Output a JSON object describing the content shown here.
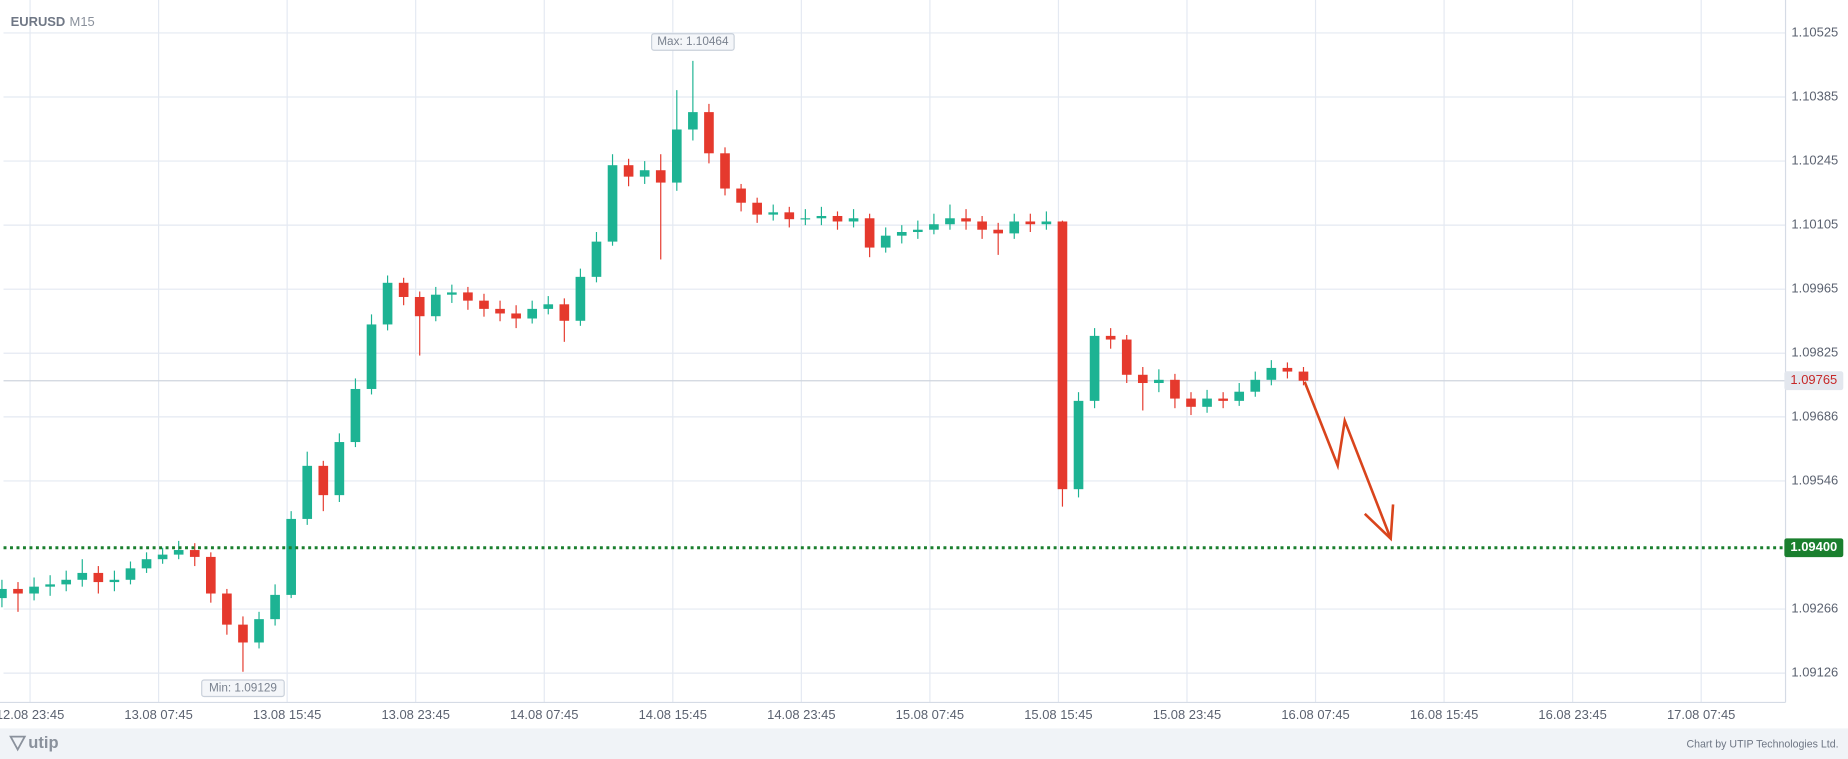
{
  "chart_data": {
    "type": "candlestick",
    "title": "EURUSD",
    "subtitle": "M15",
    "x": [
      22,
      23,
      24,
      25,
      26,
      27,
      28,
      29,
      30,
      31,
      32,
      33,
      34,
      35,
      36,
      37,
      38,
      39,
      40,
      41,
      42,
      43,
      44,
      45,
      46,
      47,
      48,
      49,
      50,
      51,
      52,
      53,
      54,
      55,
      56,
      57,
      58,
      59,
      60,
      61,
      62,
      63,
      64,
      65,
      66,
      67,
      68,
      69,
      70,
      71,
      72,
      73,
      74,
      75,
      76,
      77,
      78,
      79,
      80,
      81,
      82,
      83,
      84,
      85,
      86,
      87,
      88,
      89,
      90,
      91,
      92,
      93,
      94,
      95,
      96,
      97,
      98,
      99,
      100,
      101,
      102,
      103
    ],
    "open": [
      1.0929,
      1.0931,
      1.093,
      1.09315,
      1.0932,
      1.0933,
      1.09345,
      1.09325,
      1.0933,
      1.09355,
      1.09375,
      1.09385,
      1.09395,
      1.0938,
      1.093,
      1.09232,
      1.09193,
      1.09244,
      1.09297,
      1.09463,
      1.09579,
      1.09515,
      1.09631,
      1.09747,
      1.09888,
      1.09979,
      1.09948,
      1.09906,
      1.09953,
      1.09958,
      1.0994,
      1.09922,
      1.09912,
      1.09901,
      1.09922,
      1.09932,
      1.09896,
      1.09992,
      1.10069,
      1.10236,
      1.10211,
      1.10225,
      1.10198,
      1.10314,
      1.10352,
      1.10262,
      1.10185,
      1.10154,
      1.10128,
      1.10133,
      1.10118,
      1.1012,
      1.10125,
      1.10113,
      1.1012,
      1.10056,
      1.10082,
      1.1009,
      1.10095,
      1.10107,
      1.1012,
      1.10113,
      1.10095,
      1.10087,
      1.10113,
      1.10107,
      1.10113,
      1.09528,
      1.09721,
      1.09863,
      1.09855,
      1.09778,
      1.0976,
      1.09767,
      1.09726,
      1.09708,
      1.09726,
      1.09721,
      1.09741,
      1.09767,
      1.09793,
      1.09785
    ],
    "high": [
      1.0933,
      1.09325,
      1.09335,
      1.0934,
      1.0935,
      1.09375,
      1.0936,
      1.0935,
      1.0937,
      1.0939,
      1.094,
      1.09415,
      1.0941,
      1.0939,
      1.0931,
      1.0925,
      1.0926,
      1.0932,
      1.0948,
      1.0961,
      1.0959,
      1.0965,
      1.0977,
      1.0991,
      1.09995,
      1.0999,
      1.0996,
      1.0997,
      1.09975,
      1.0997,
      1.09955,
      1.0994,
      1.0993,
      1.0994,
      1.0995,
      1.09945,
      1.1001,
      1.1009,
      1.1026,
      1.1025,
      1.10245,
      1.1026,
      1.104,
      1.10464,
      1.1037,
      1.10275,
      1.10195,
      1.10165,
      1.1015,
      1.10145,
      1.1014,
      1.10145,
      1.10135,
      1.1014,
      1.1013,
      1.101,
      1.10105,
      1.10115,
      1.1013,
      1.1015,
      1.1014,
      1.10125,
      1.1011,
      1.1013,
      1.1013,
      1.10135,
      1.10115,
      1.0974,
      1.0988,
      1.0988,
      1.09865,
      1.09795,
      1.0979,
      1.0978,
      1.0974,
      1.09745,
      1.0974,
      1.0976,
      1.09785,
      1.0981,
      1.09805,
      1.09795
    ],
    "low": [
      1.0927,
      1.0926,
      1.09285,
      1.09295,
      1.09305,
      1.09315,
      1.093,
      1.09305,
      1.0932,
      1.09345,
      1.09365,
      1.09375,
      1.0936,
      1.0928,
      1.0921,
      1.09129,
      1.0918,
      1.0923,
      1.0929,
      1.0945,
      1.0948,
      1.095,
      1.0962,
      1.09735,
      1.09875,
      1.0993,
      1.0982,
      1.09895,
      1.09935,
      1.0992,
      1.09905,
      1.09895,
      1.0988,
      1.0989,
      1.0991,
      1.0985,
      1.09885,
      1.0998,
      1.1006,
      1.1019,
      1.10195,
      1.1003,
      1.1018,
      1.1029,
      1.1024,
      1.1017,
      1.10135,
      1.1011,
      1.10115,
      1.101,
      1.10105,
      1.10105,
      1.10095,
      1.101,
      1.10035,
      1.10045,
      1.10065,
      1.10075,
      1.10085,
      1.10095,
      1.10095,
      1.10075,
      1.1004,
      1.10075,
      1.1009,
      1.10095,
      1.0949,
      1.0951,
      1.09705,
      1.09835,
      1.0976,
      1.097,
      1.0974,
      1.09705,
      1.0969,
      1.09695,
      1.09705,
      1.0971,
      1.0973,
      1.09755,
      1.0977,
      1.09755
    ],
    "close": [
      1.0931,
      1.093,
      1.09315,
      1.0932,
      1.0933,
      1.09345,
      1.09325,
      1.0933,
      1.09355,
      1.09375,
      1.09385,
      1.09395,
      1.0938,
      1.093,
      1.09232,
      1.09193,
      1.09244,
      1.09297,
      1.09463,
      1.09579,
      1.09515,
      1.09631,
      1.09747,
      1.09888,
      1.09979,
      1.09948,
      1.09906,
      1.09953,
      1.09958,
      1.0994,
      1.09922,
      1.09912,
      1.09901,
      1.09922,
      1.09932,
      1.09896,
      1.09992,
      1.10069,
      1.10236,
      1.10211,
      1.10225,
      1.10198,
      1.10314,
      1.10352,
      1.10262,
      1.10185,
      1.10154,
      1.10128,
      1.10133,
      1.10118,
      1.1012,
      1.10125,
      1.10113,
      1.1012,
      1.10056,
      1.10082,
      1.1009,
      1.10095,
      1.10107,
      1.1012,
      1.10113,
      1.10095,
      1.10087,
      1.10113,
      1.10107,
      1.10113,
      1.09528,
      1.09721,
      1.09863,
      1.09855,
      1.09778,
      1.0976,
      1.09767,
      1.09726,
      1.09708,
      1.09726,
      1.09721,
      1.09741,
      1.09767,
      1.09793,
      1.09785,
      1.09765
    ],
    "up_color": "#1db393",
    "down_color": "#e5392d",
    "xlim": [
      22.1,
      133
    ],
    "xticks": [
      {
        "value": 23.75,
        "label": "12.08 23:45"
      },
      {
        "value": 31.75,
        "label": "13.08 07:45"
      },
      {
        "value": 39.75,
        "label": "13.08 15:45"
      },
      {
        "value": 47.75,
        "label": "13.08 23:45"
      },
      {
        "value": 55.75,
        "label": "14.08 07:45"
      },
      {
        "value": 63.75,
        "label": "14.08 15:45"
      },
      {
        "value": 71.75,
        "label": "14.08 23:45"
      },
      {
        "value": 79.75,
        "label": "15.08 07:45"
      },
      {
        "value": 87.75,
        "label": "15.08 15:45"
      },
      {
        "value": 95.75,
        "label": "15.08 23:45"
      },
      {
        "value": 103.75,
        "label": "16.08 07:45"
      },
      {
        "value": 111.75,
        "label": "16.08 15:45"
      },
      {
        "value": 119.75,
        "label": "16.08 23:45"
      },
      {
        "value": 127.75,
        "label": "17.08 07:45"
      }
    ],
    "ylim": [
      1.09062,
      1.10597
    ],
    "yticks": [
      1.10525,
      1.10385,
      1.10245,
      1.10105,
      1.09965,
      1.09825,
      1.09686,
      1.09546,
      1.09266,
      1.09126
    ],
    "grid": true,
    "level": {
      "value": 1.094,
      "label": "1.09400",
      "color": "#1a7f2e"
    },
    "last_price": 1.09765,
    "annotations": [
      "Max: 1.10464",
      "Min: 1.09129"
    ]
  },
  "footer": {
    "logo": "utip",
    "credit": "Chart by UTIP Technologies Ltd."
  }
}
